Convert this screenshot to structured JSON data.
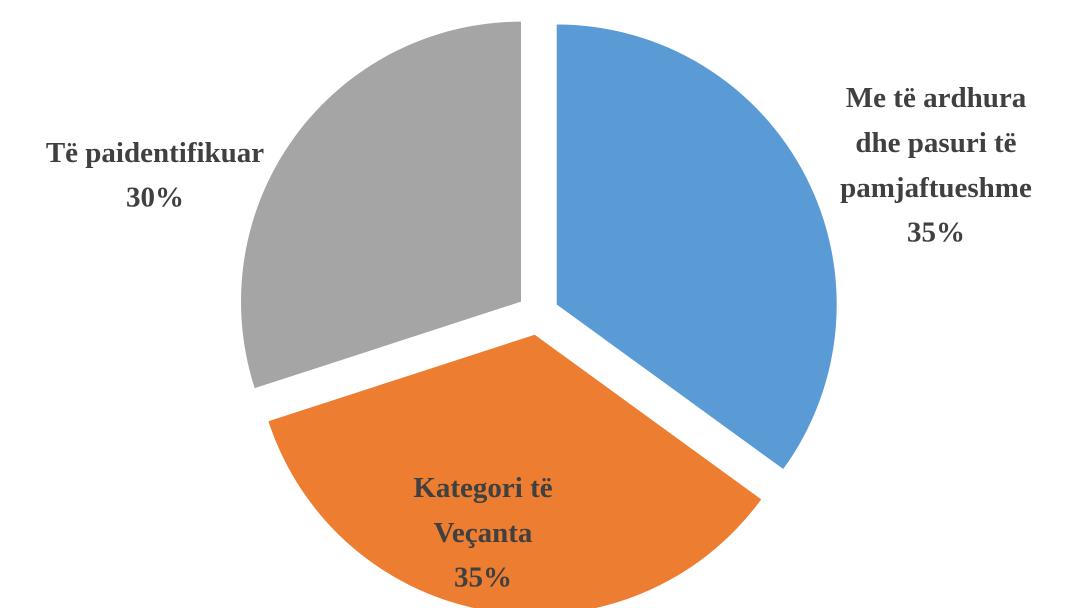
{
  "chart_data": {
    "type": "pie",
    "categories": [
      "Me të ardhura dhe pasuri të pamjaftueshme",
      "Kategori të Veçanta",
      "Të paidentifikuar"
    ],
    "values": [
      35,
      35,
      30
    ],
    "value_labels": [
      "35%",
      "35%",
      "30%"
    ],
    "colors": [
      "#5b9bd5",
      "#ed7d31",
      "#a5a5a5"
    ]
  }
}
